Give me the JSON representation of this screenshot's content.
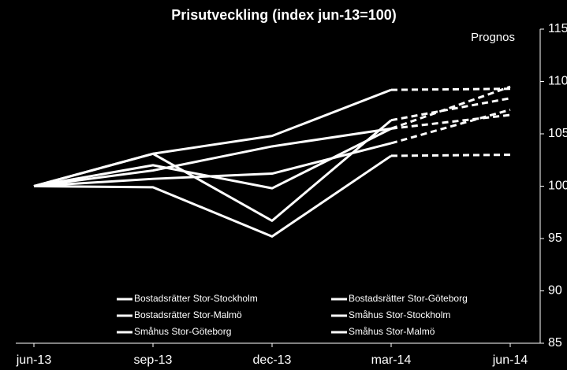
{
  "chart_data": {
    "type": "line",
    "title": "Prisutveckling (index jun-13=100)",
    "annotation": "Prognos",
    "categories": [
      "jun-13",
      "sep-13",
      "dec-13",
      "mar-14",
      "jun-14"
    ],
    "forecast_from": 3,
    "series": [
      {
        "name": "Bostadsrätter Stor-Stockholm",
        "color": "#ffffff",
        "values": [
          100,
          103.1,
          96.7,
          106.3,
          108.4
        ]
      },
      {
        "name": "Bostadsrätter Stor-Göteborg",
        "color": "#ffffff",
        "values": [
          100,
          102.0,
          99.8,
          105.5,
          109.5
        ]
      },
      {
        "name": "Bostadsrätter Stor-Malmö",
        "color": "#ffffff",
        "values": [
          100,
          99.9,
          95.2,
          102.9,
          103.0
        ]
      },
      {
        "name": "Småhus Stor-Stockholm",
        "color": "#ffffff",
        "values": [
          100,
          103.1,
          104.8,
          109.2,
          109.3
        ]
      },
      {
        "name": "Småhus Stor-Göteborg",
        "color": "#ffffff",
        "values": [
          100,
          101.5,
          103.8,
          105.5,
          106.8
        ]
      },
      {
        "name": "Småhus Stor-Malmö",
        "color": "#ffffff",
        "values": [
          100,
          100.7,
          101.2,
          104.1,
          107.3
        ]
      }
    ],
    "ylim": [
      85,
      115
    ],
    "yticks": [
      85,
      90,
      95,
      100,
      105,
      110,
      115
    ],
    "y_axis_side": "right",
    "grid": false,
    "legend": "bottom"
  }
}
